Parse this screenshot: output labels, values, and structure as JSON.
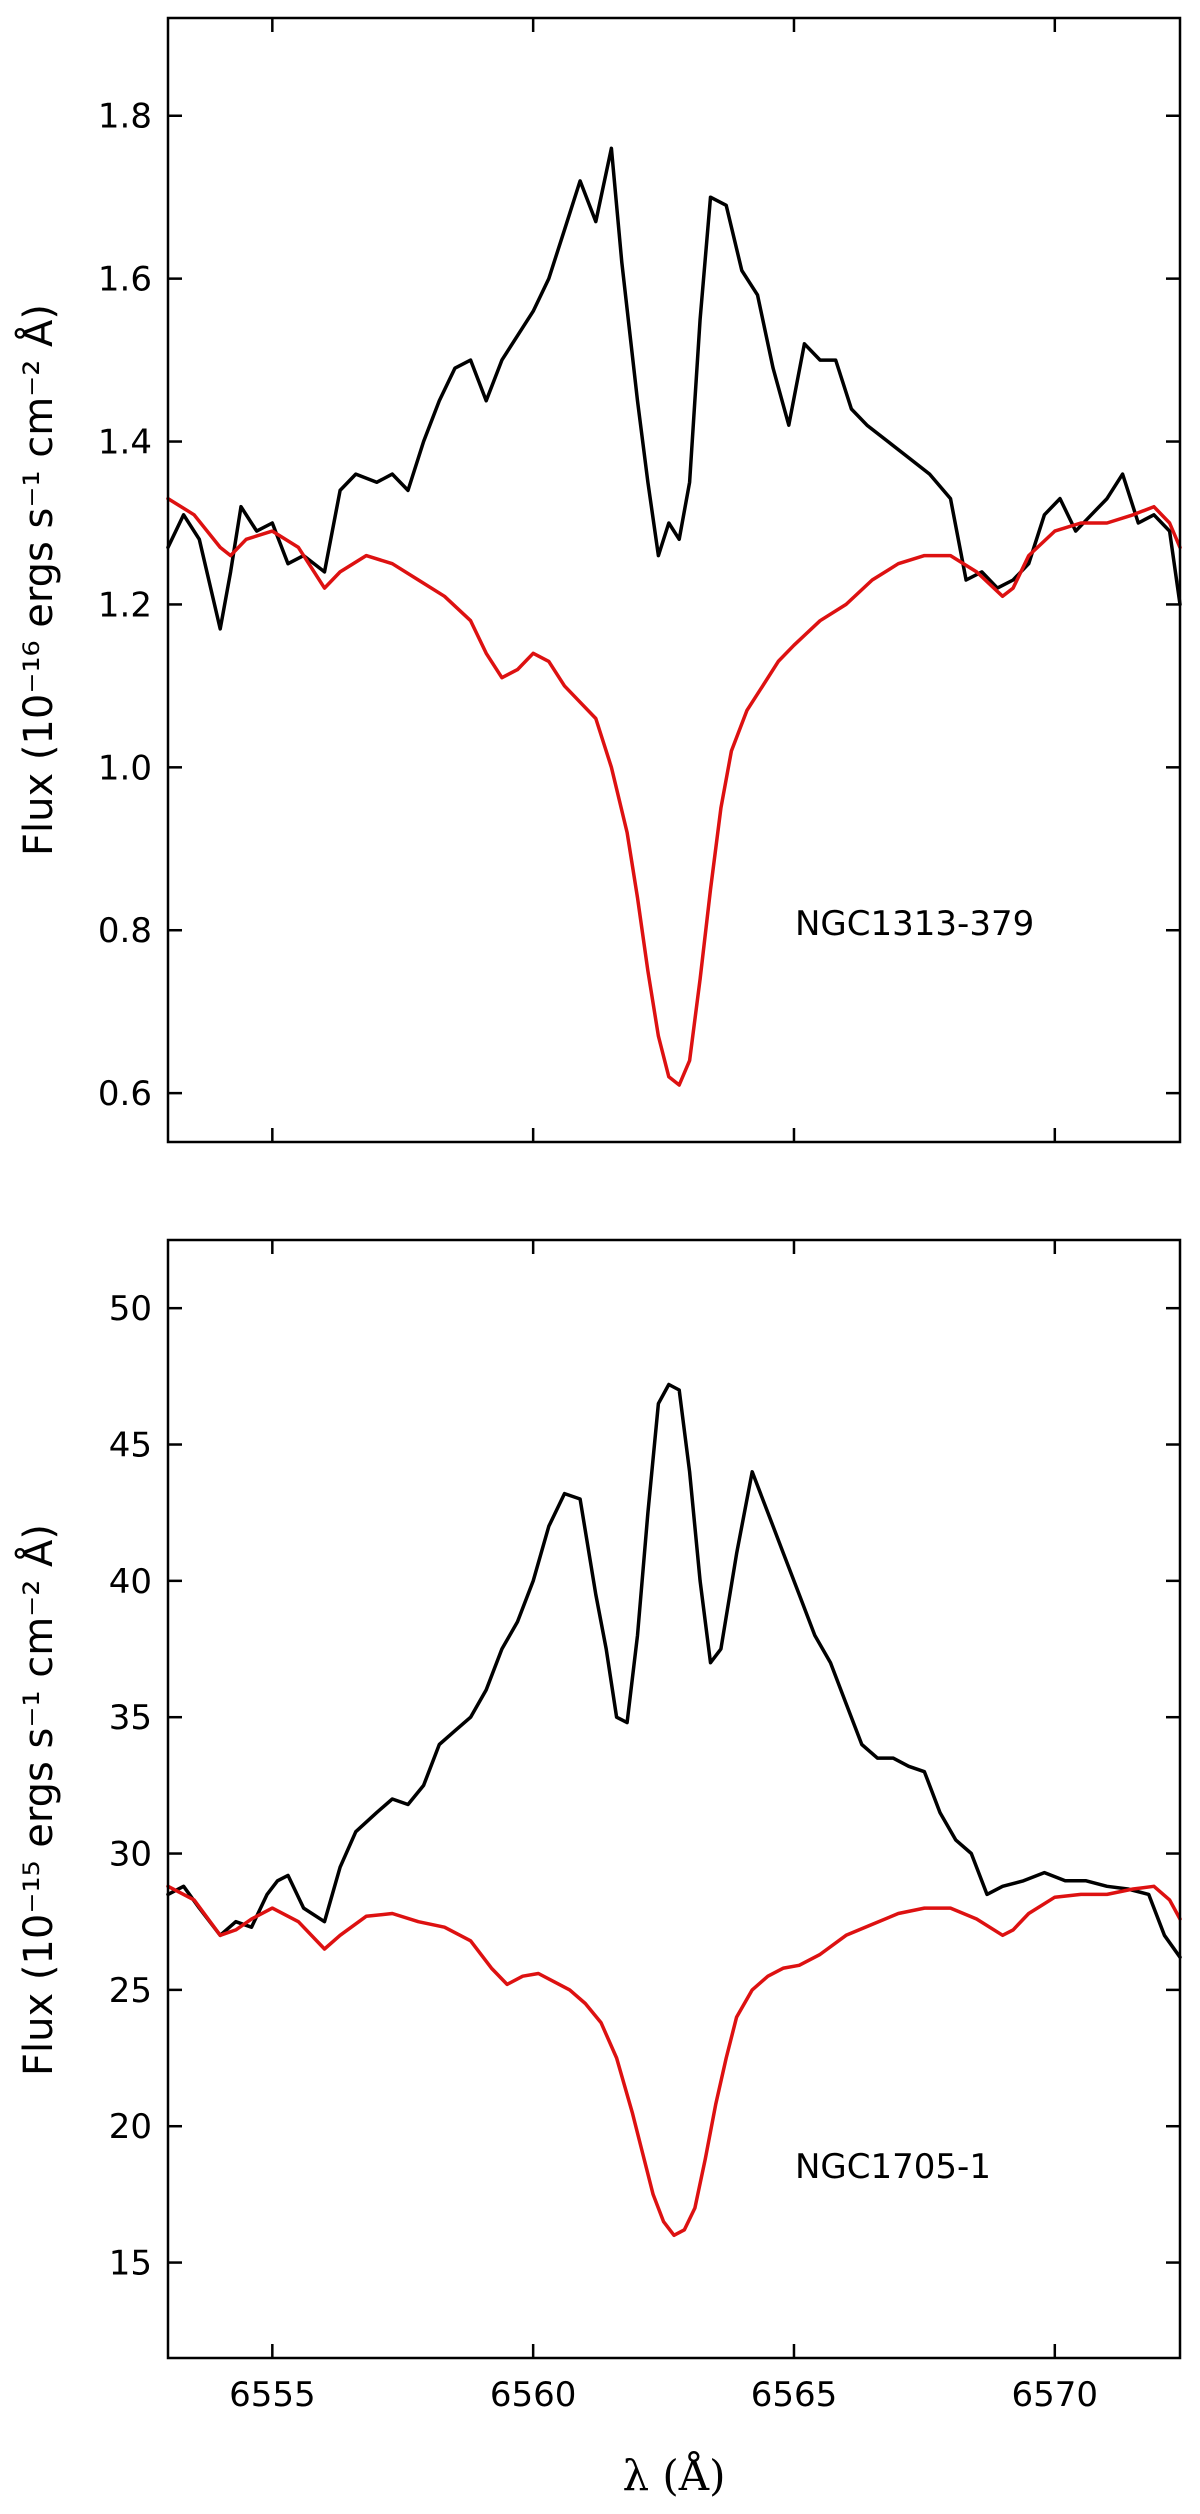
{
  "chart_data": [
    {
      "type": "line",
      "annotation": "NGC1313-379",
      "ylabel": "Flux (10⁻¹⁶ ergs s⁻¹ cm⁻² Å)",
      "xlabel": "",
      "xlim": [
        6553.0,
        6572.4
      ],
      "ylim": [
        0.54,
        1.92
      ],
      "xticks": [
        6555,
        6560,
        6565,
        6570
      ],
      "yticks": [
        0.6,
        0.8,
        1.0,
        1.2,
        1.4,
        1.6,
        1.8
      ],
      "ytick_labels": [
        "0.6",
        "0.8",
        "1.0",
        "1.2",
        "1.4",
        "1.6",
        "1.8"
      ],
      "grid": false,
      "series": [
        {
          "color": "#000000",
          "x": [
            6553.0,
            6553.3,
            6553.6,
            6554.0,
            6554.2,
            6554.4,
            6554.7,
            6555.0,
            6555.3,
            6555.6,
            6556.0,
            6556.3,
            6556.6,
            6557.0,
            6557.3,
            6557.6,
            6557.9,
            6558.2,
            6558.5,
            6558.8,
            6559.1,
            6559.4,
            6559.7,
            6560.0,
            6560.3,
            6560.6,
            6560.9,
            6561.2,
            6561.5,
            6561.7,
            6562.0,
            6562.2,
            6562.4,
            6562.6,
            6562.8,
            6563.0,
            6563.2,
            6563.4,
            6563.7,
            6564.0,
            6564.3,
            6564.6,
            6564.9,
            6565.2,
            6565.5,
            6565.8,
            6566.1,
            6566.4,
            6566.8,
            6567.2,
            6567.6,
            6568.0,
            6568.3,
            6568.6,
            6568.9,
            6569.2,
            6569.5,
            6569.8,
            6570.1,
            6570.4,
            6570.7,
            6571.0,
            6571.3,
            6571.6,
            6571.9,
            6572.2,
            6572.4
          ],
          "y": [
            1.27,
            1.31,
            1.28,
            1.17,
            1.24,
            1.32,
            1.29,
            1.3,
            1.25,
            1.26,
            1.24,
            1.34,
            1.36,
            1.35,
            1.36,
            1.34,
            1.4,
            1.45,
            1.49,
            1.5,
            1.45,
            1.5,
            1.53,
            1.56,
            1.6,
            1.66,
            1.72,
            1.67,
            1.76,
            1.62,
            1.45,
            1.35,
            1.26,
            1.3,
            1.28,
            1.35,
            1.55,
            1.7,
            1.69,
            1.61,
            1.58,
            1.49,
            1.42,
            1.52,
            1.5,
            1.5,
            1.44,
            1.42,
            1.4,
            1.38,
            1.36,
            1.33,
            1.23,
            1.24,
            1.22,
            1.23,
            1.25,
            1.31,
            1.33,
            1.29,
            1.31,
            1.33,
            1.36,
            1.3,
            1.31,
            1.29,
            1.2
          ]
        },
        {
          "color": "#dd1111",
          "x": [
            6553.0,
            6553.5,
            6554.0,
            6554.2,
            6554.5,
            6555.0,
            6555.5,
            6556.0,
            6556.3,
            6556.8,
            6557.3,
            6557.8,
            6558.3,
            6558.8,
            6559.1,
            6559.4,
            6559.7,
            6560.0,
            6560.3,
            6560.6,
            6560.9,
            6561.2,
            6561.5,
            6561.8,
            6562.0,
            6562.2,
            6562.4,
            6562.6,
            6562.8,
            6563.0,
            6563.2,
            6563.4,
            6563.6,
            6563.8,
            6564.1,
            6564.4,
            6564.7,
            6565.0,
            6565.5,
            6566.0,
            6566.5,
            6567.0,
            6567.5,
            6568.0,
            6568.5,
            6569.0,
            6569.2,
            6569.5,
            6570.0,
            6570.5,
            6571.0,
            6571.5,
            6571.9,
            6572.2,
            6572.4
          ],
          "y": [
            1.33,
            1.31,
            1.27,
            1.26,
            1.28,
            1.29,
            1.27,
            1.22,
            1.24,
            1.26,
            1.25,
            1.23,
            1.21,
            1.18,
            1.14,
            1.11,
            1.12,
            1.14,
            1.13,
            1.1,
            1.08,
            1.06,
            1.0,
            0.92,
            0.84,
            0.75,
            0.67,
            0.62,
            0.61,
            0.64,
            0.74,
            0.85,
            0.95,
            1.02,
            1.07,
            1.1,
            1.13,
            1.15,
            1.18,
            1.2,
            1.23,
            1.25,
            1.26,
            1.26,
            1.24,
            1.21,
            1.22,
            1.26,
            1.29,
            1.3,
            1.3,
            1.31,
            1.32,
            1.3,
            1.27
          ]
        }
      ]
    },
    {
      "type": "line",
      "annotation": "NGC1705-1",
      "ylabel": "Flux (10⁻¹⁵ ergs s⁻¹ cm⁻² Å)",
      "xlabel": "λ (Å)",
      "xlim": [
        6553.0,
        6572.4
      ],
      "ylim": [
        11.5,
        52.5
      ],
      "xticks": [
        6555,
        6560,
        6565,
        6570
      ],
      "xtick_labels": [
        "6555",
        "6560",
        "6565",
        "6570"
      ],
      "yticks": [
        15,
        20,
        25,
        30,
        35,
        40,
        45,
        50
      ],
      "ytick_labels": [
        "15",
        "20",
        "25",
        "30",
        "35",
        "40",
        "45",
        "50"
      ],
      "grid": false,
      "series": [
        {
          "color": "#000000",
          "x": [
            6553.0,
            6553.3,
            6553.6,
            6554.0,
            6554.3,
            6554.6,
            6554.9,
            6555.1,
            6555.3,
            6555.6,
            6556.0,
            6556.3,
            6556.6,
            6557.0,
            6557.3,
            6557.6,
            6557.9,
            6558.2,
            6558.5,
            6558.8,
            6559.1,
            6559.4,
            6559.7,
            6560.0,
            6560.3,
            6560.6,
            6560.9,
            6561.2,
            6561.4,
            6561.6,
            6561.8,
            6562.0,
            6562.2,
            6562.4,
            6562.6,
            6562.8,
            6563.0,
            6563.2,
            6563.4,
            6563.6,
            6563.9,
            6564.2,
            6564.5,
            6564.8,
            6565.1,
            6565.4,
            6565.7,
            6566.0,
            6566.3,
            6566.6,
            6566.9,
            6567.2,
            6567.5,
            6567.8,
            6568.1,
            6568.4,
            6568.7,
            6569.0,
            6569.4,
            6569.8,
            6570.2,
            6570.6,
            6571.0,
            6571.4,
            6571.8,
            6572.1,
            6572.4
          ],
          "y": [
            28.5,
            28.8,
            28.0,
            27.0,
            27.5,
            27.3,
            28.5,
            29.0,
            29.2,
            28.0,
            27.5,
            29.5,
            30.8,
            31.5,
            32.0,
            31.8,
            32.5,
            34.0,
            34.5,
            35.0,
            36.0,
            37.5,
            38.5,
            40.0,
            42.0,
            43.2,
            43.0,
            39.5,
            37.5,
            35.0,
            34.8,
            38.0,
            42.5,
            46.5,
            47.2,
            47.0,
            44.0,
            40.0,
            37.0,
            37.5,
            41.0,
            44.0,
            42.5,
            41.0,
            39.5,
            38.0,
            37.0,
            35.5,
            34.0,
            33.5,
            33.5,
            33.2,
            33.0,
            31.5,
            30.5,
            30.0,
            28.5,
            28.8,
            29.0,
            29.3,
            29.0,
            29.0,
            28.8,
            28.7,
            28.5,
            27.0,
            26.2
          ]
        },
        {
          "color": "#dd1111",
          "x": [
            6553.0,
            6553.5,
            6554.0,
            6554.3,
            6554.6,
            6555.0,
            6555.5,
            6556.0,
            6556.3,
            6556.8,
            6557.3,
            6557.8,
            6558.3,
            6558.8,
            6559.2,
            6559.5,
            6559.8,
            6560.1,
            6560.4,
            6560.7,
            6561.0,
            6561.3,
            6561.6,
            6561.9,
            6562.1,
            6562.3,
            6562.5,
            6562.7,
            6562.9,
            6563.1,
            6563.3,
            6563.5,
            6563.7,
            6563.9,
            6564.2,
            6564.5,
            6564.8,
            6565.1,
            6565.5,
            6566.0,
            6566.5,
            6567.0,
            6567.5,
            6568.0,
            6568.5,
            6569.0,
            6569.2,
            6569.5,
            6570.0,
            6570.5,
            6571.0,
            6571.5,
            6571.9,
            6572.2,
            6572.4
          ],
          "y": [
            28.8,
            28.3,
            27.0,
            27.2,
            27.6,
            28.0,
            27.5,
            26.5,
            27.0,
            27.7,
            27.8,
            27.5,
            27.3,
            26.8,
            25.8,
            25.2,
            25.5,
            25.6,
            25.3,
            25.0,
            24.5,
            23.8,
            22.5,
            20.5,
            19.0,
            17.5,
            16.5,
            16.0,
            16.2,
            17.0,
            18.8,
            20.8,
            22.5,
            24.0,
            25.0,
            25.5,
            25.8,
            25.9,
            26.3,
            27.0,
            27.4,
            27.8,
            28.0,
            28.0,
            27.6,
            27.0,
            27.2,
            27.8,
            28.4,
            28.5,
            28.5,
            28.7,
            28.8,
            28.3,
            27.6
          ]
        }
      ]
    }
  ]
}
